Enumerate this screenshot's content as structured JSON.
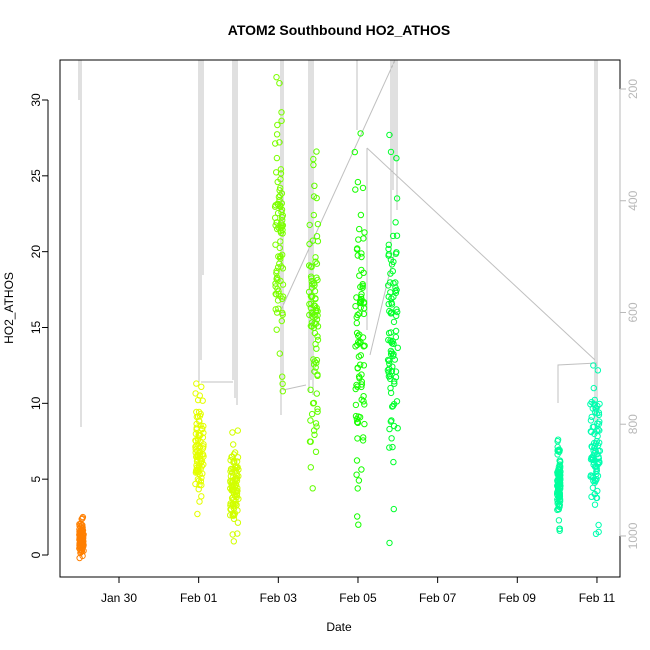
{
  "chart_data": {
    "type": "scatter",
    "title": "ATOM2 Southbound HO2_ATHOS",
    "xlabel": "Date",
    "ylabel": "HO2_ATHOS",
    "x_ticks": [
      "Jan 30",
      "Feb 01",
      "Feb 03",
      "Feb 05",
      "Feb 07",
      "Feb 09",
      "Feb 11"
    ],
    "y_ticks": [
      0,
      5,
      10,
      15,
      20,
      25,
      30
    ],
    "y2_ticks": [
      200,
      400,
      600,
      800,
      1000
    ],
    "y2_reversed": true,
    "grid": false,
    "legend": "none",
    "series": [
      {
        "x_range": [
          "2017-01-29T00:00",
          "2017-01-29T02:40"
        ],
        "y_range": [
          -0.2,
          2.5
        ],
        "color": "#ff7f00"
      },
      {
        "x_range": [
          "2017-01-31T22:00",
          "2017-02-01T03:00"
        ],
        "y_range": [
          2.7,
          11.3
        ],
        "color": "#e4ff00"
      },
      {
        "x_range": [
          "2017-02-01T19:00",
          "2017-02-02T00:00"
        ],
        "y_range": [
          0.9,
          8.2
        ],
        "color": "#d2ff00"
      },
      {
        "x_range": [
          "2017-02-02T22:00",
          "2017-02-03T03:00"
        ],
        "y_range": [
          10.8,
          31.5
        ],
        "color": "#7cff00"
      },
      {
        "x_range": [
          "2017-02-03T18:30",
          "2017-02-04T00:00"
        ],
        "y_range": [
          4.4,
          26.6
        ],
        "color": "#62ff00"
      },
      {
        "x_range": [
          "2017-02-04T22:00",
          "2017-02-05T04:00"
        ],
        "y_range": [
          2.0,
          27.8
        ],
        "color": "#17ff00"
      },
      {
        "x_range": [
          "2017-02-05T18:00",
          "2017-02-06T00:00"
        ],
        "y_range": [
          0.8,
          27.7
        ],
        "color": "#00ff2c"
      },
      {
        "x_range": [
          "2017-02-10T00:00",
          "2017-02-10T02:00"
        ],
        "y_range": [
          1.6,
          7.6
        ],
        "color": "#00ff9c"
      },
      {
        "x_range": [
          "2017-02-10T20:00",
          "2017-02-11T02:00"
        ],
        "y_range": [
          1.4,
          12.5
        ],
        "color": "#00ffb0"
      }
    ],
    "secondary_series": {
      "name": "altitude",
      "color": "#c0c0c0"
    }
  }
}
